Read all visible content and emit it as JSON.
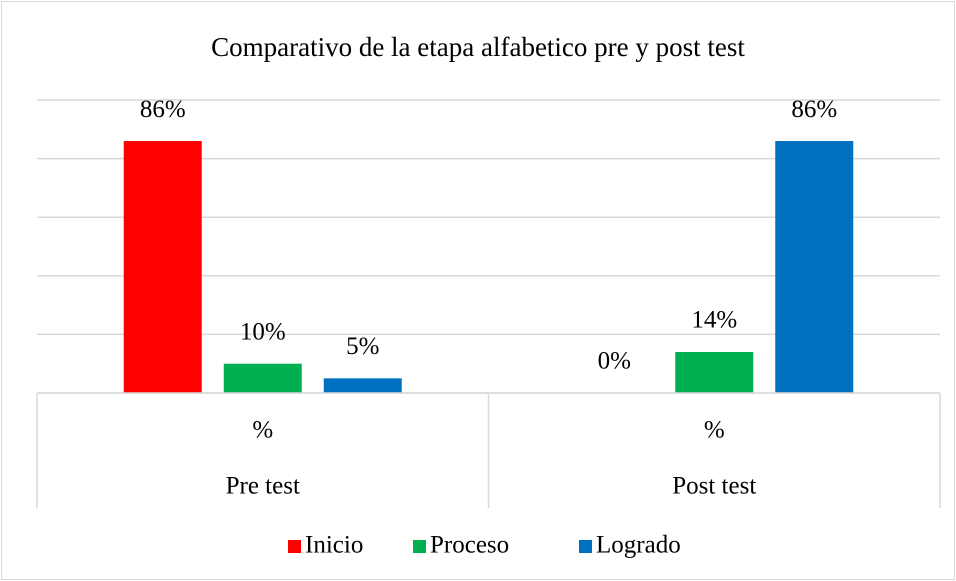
{
  "chart_data": {
    "type": "bar",
    "title": "Comparativo de la etapa alfabetico pre y post test",
    "groups": [
      "Pre test",
      "Post test"
    ],
    "categories": [
      "%",
      "%"
    ],
    "series": [
      {
        "name": "Inicio",
        "color": "#ff0000",
        "values": [
          86,
          0
        ],
        "value_labels": [
          "86%",
          "0%"
        ]
      },
      {
        "name": "Proceso",
        "color": "#00b050",
        "values": [
          10,
          14
        ],
        "value_labels": [
          "10%",
          "14%"
        ]
      },
      {
        "name": "Logrado",
        "color": "#0070c0",
        "values": [
          5,
          86
        ],
        "value_labels": [
          "5%",
          "86%"
        ]
      }
    ],
    "ylim": [
      0,
      100
    ],
    "yticks": [
      0,
      20,
      40,
      60,
      80,
      100
    ],
    "grid": true,
    "legend": "bottom"
  }
}
